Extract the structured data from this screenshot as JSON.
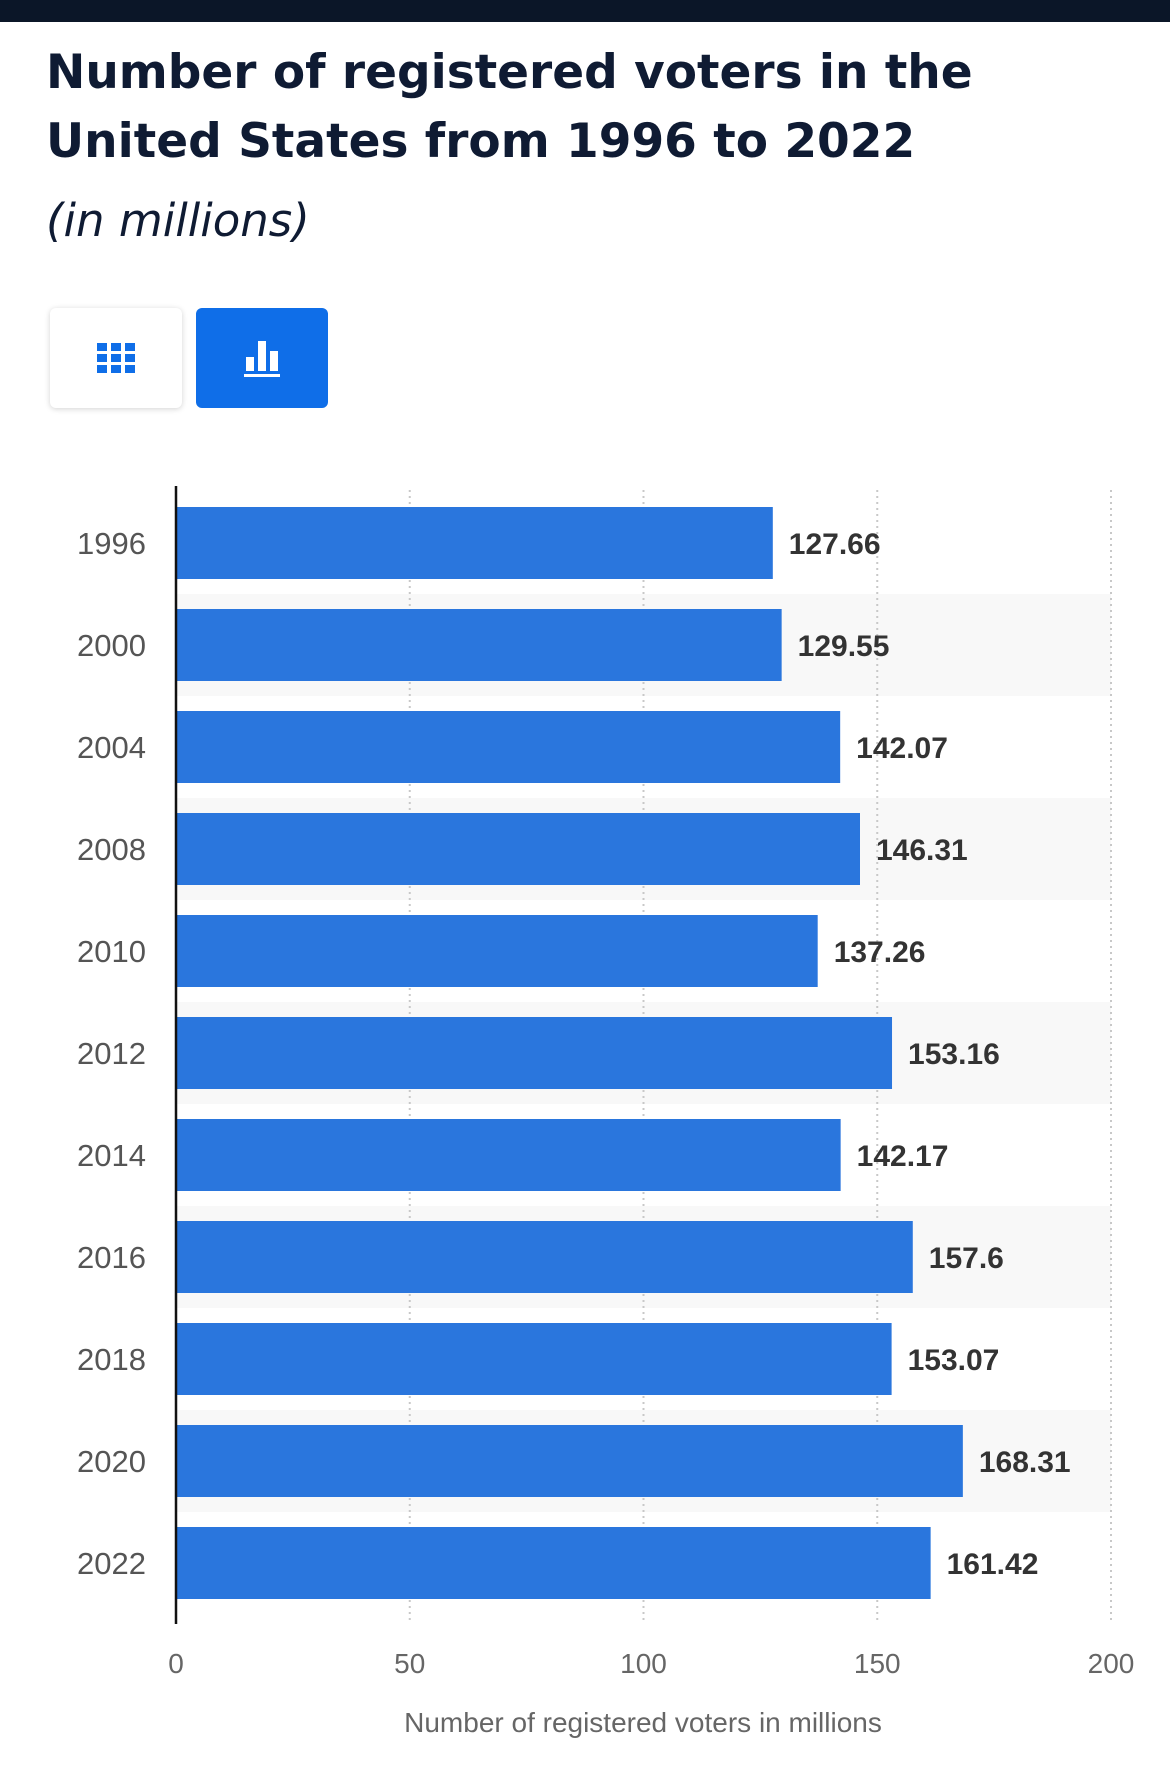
{
  "header": {
    "title": "Number of registered voters in the United States from 1996 to 2022",
    "subtitle": "(in millions)"
  },
  "view_toggle": {
    "table_icon": "table-grid-icon",
    "chart_icon": "bar-chart-icon",
    "active": "chart",
    "active_color": "#0f6ee8"
  },
  "chart_data": {
    "type": "bar",
    "orientation": "horizontal",
    "title": "Number of registered voters in the United States from 1996 to 2022",
    "subtitle": "(in millions)",
    "xlabel": "Number of registered voters in millions",
    "ylabel": "",
    "categories": [
      "1996",
      "2000",
      "2004",
      "2008",
      "2010",
      "2012",
      "2014",
      "2016",
      "2018",
      "2020",
      "2022"
    ],
    "values": [
      127.66,
      129.55,
      142.07,
      146.31,
      137.26,
      153.16,
      142.17,
      157.6,
      153.07,
      168.31,
      161.42
    ],
    "value_labels": [
      "127.66",
      "129.55",
      "142.07",
      "146.31",
      "137.26",
      "153.16",
      "142.17",
      "157.6",
      "153.07",
      "168.31",
      "161.42"
    ],
    "xlim": [
      0,
      200
    ],
    "xticks": [
      0,
      50,
      100,
      150,
      200
    ],
    "grid": true,
    "bar_color": "#2a76dd",
    "band_color": "#f8f8f8"
  }
}
